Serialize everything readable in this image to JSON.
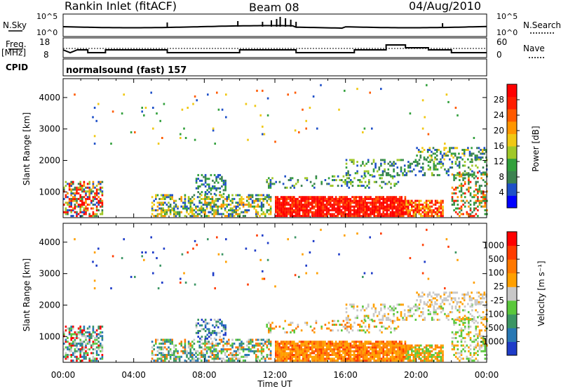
{
  "header": {
    "station": "Rankin Inlet (fitACF)",
    "beam": "Beam 08",
    "date": "04/Aug/2010"
  },
  "top_panels": {
    "nsky_label": "N.Sky",
    "nsky_scale": [
      "10^5",
      "10^0"
    ],
    "nsearch_label": "N.Search",
    "nsearch_scale": [
      "10^5",
      "10^0"
    ],
    "freq_label": "Freq.",
    "freq_unit": "[MHz]",
    "freq_scale": [
      "18",
      "8"
    ],
    "nave_label": "Nave",
    "nave_scale": [
      "60",
      "0"
    ],
    "cpid_label": "CPID",
    "cpid_value": "normalsound (fast) 157"
  },
  "chart_data": [
    {
      "type": "heatmap",
      "panel": "power",
      "ylabel": "Slant Range [km]",
      "xlabel": "",
      "x_ticks": [
        "00:00",
        "04:00",
        "08:00",
        "12:00",
        "16:00",
        "20:00",
        "00:00"
      ],
      "y_ticks": [
        "1000",
        "2000",
        "3000",
        "4000"
      ],
      "ylim": [
        180,
        4600
      ],
      "xlim_hours": [
        0,
        24
      ],
      "colorbar_label": "Power [dB]",
      "colorbar_ticks": [
        "28",
        "24",
        "20",
        "16",
        "12",
        "8",
        "4"
      ],
      "colorbar_colors": [
        "#0000ff",
        "#1e50c8",
        "#3c8250",
        "#32a03c",
        "#a0c828",
        "#f0c814",
        "#ff9600",
        "#ff5a00",
        "#ff1e00",
        "#ff0000"
      ]
    },
    {
      "type": "heatmap",
      "panel": "velocity",
      "ylabel": "Slant Range [km]",
      "xlabel": "Time UT",
      "x_ticks": [
        "00:00",
        "04:00",
        "08:00",
        "12:00",
        "16:00",
        "20:00",
        "00:00"
      ],
      "y_ticks": [
        "1000",
        "2000",
        "3000",
        "4000"
      ],
      "ylim": [
        180,
        4600
      ],
      "xlim_hours": [
        0,
        24
      ],
      "colorbar_label": "Velocity [m s⁻¹]",
      "colorbar_ticks": [
        "1000",
        "500",
        "100",
        "25",
        "-25",
        "-100",
        "-500",
        "-1000"
      ],
      "colorbar_colors": [
        "#1e3cc8",
        "#2878b4",
        "#3c9664",
        "#5ac83c",
        "#c8c8c8",
        "#ffa000",
        "#ff7800",
        "#ff3c00",
        "#ff0000"
      ]
    }
  ]
}
